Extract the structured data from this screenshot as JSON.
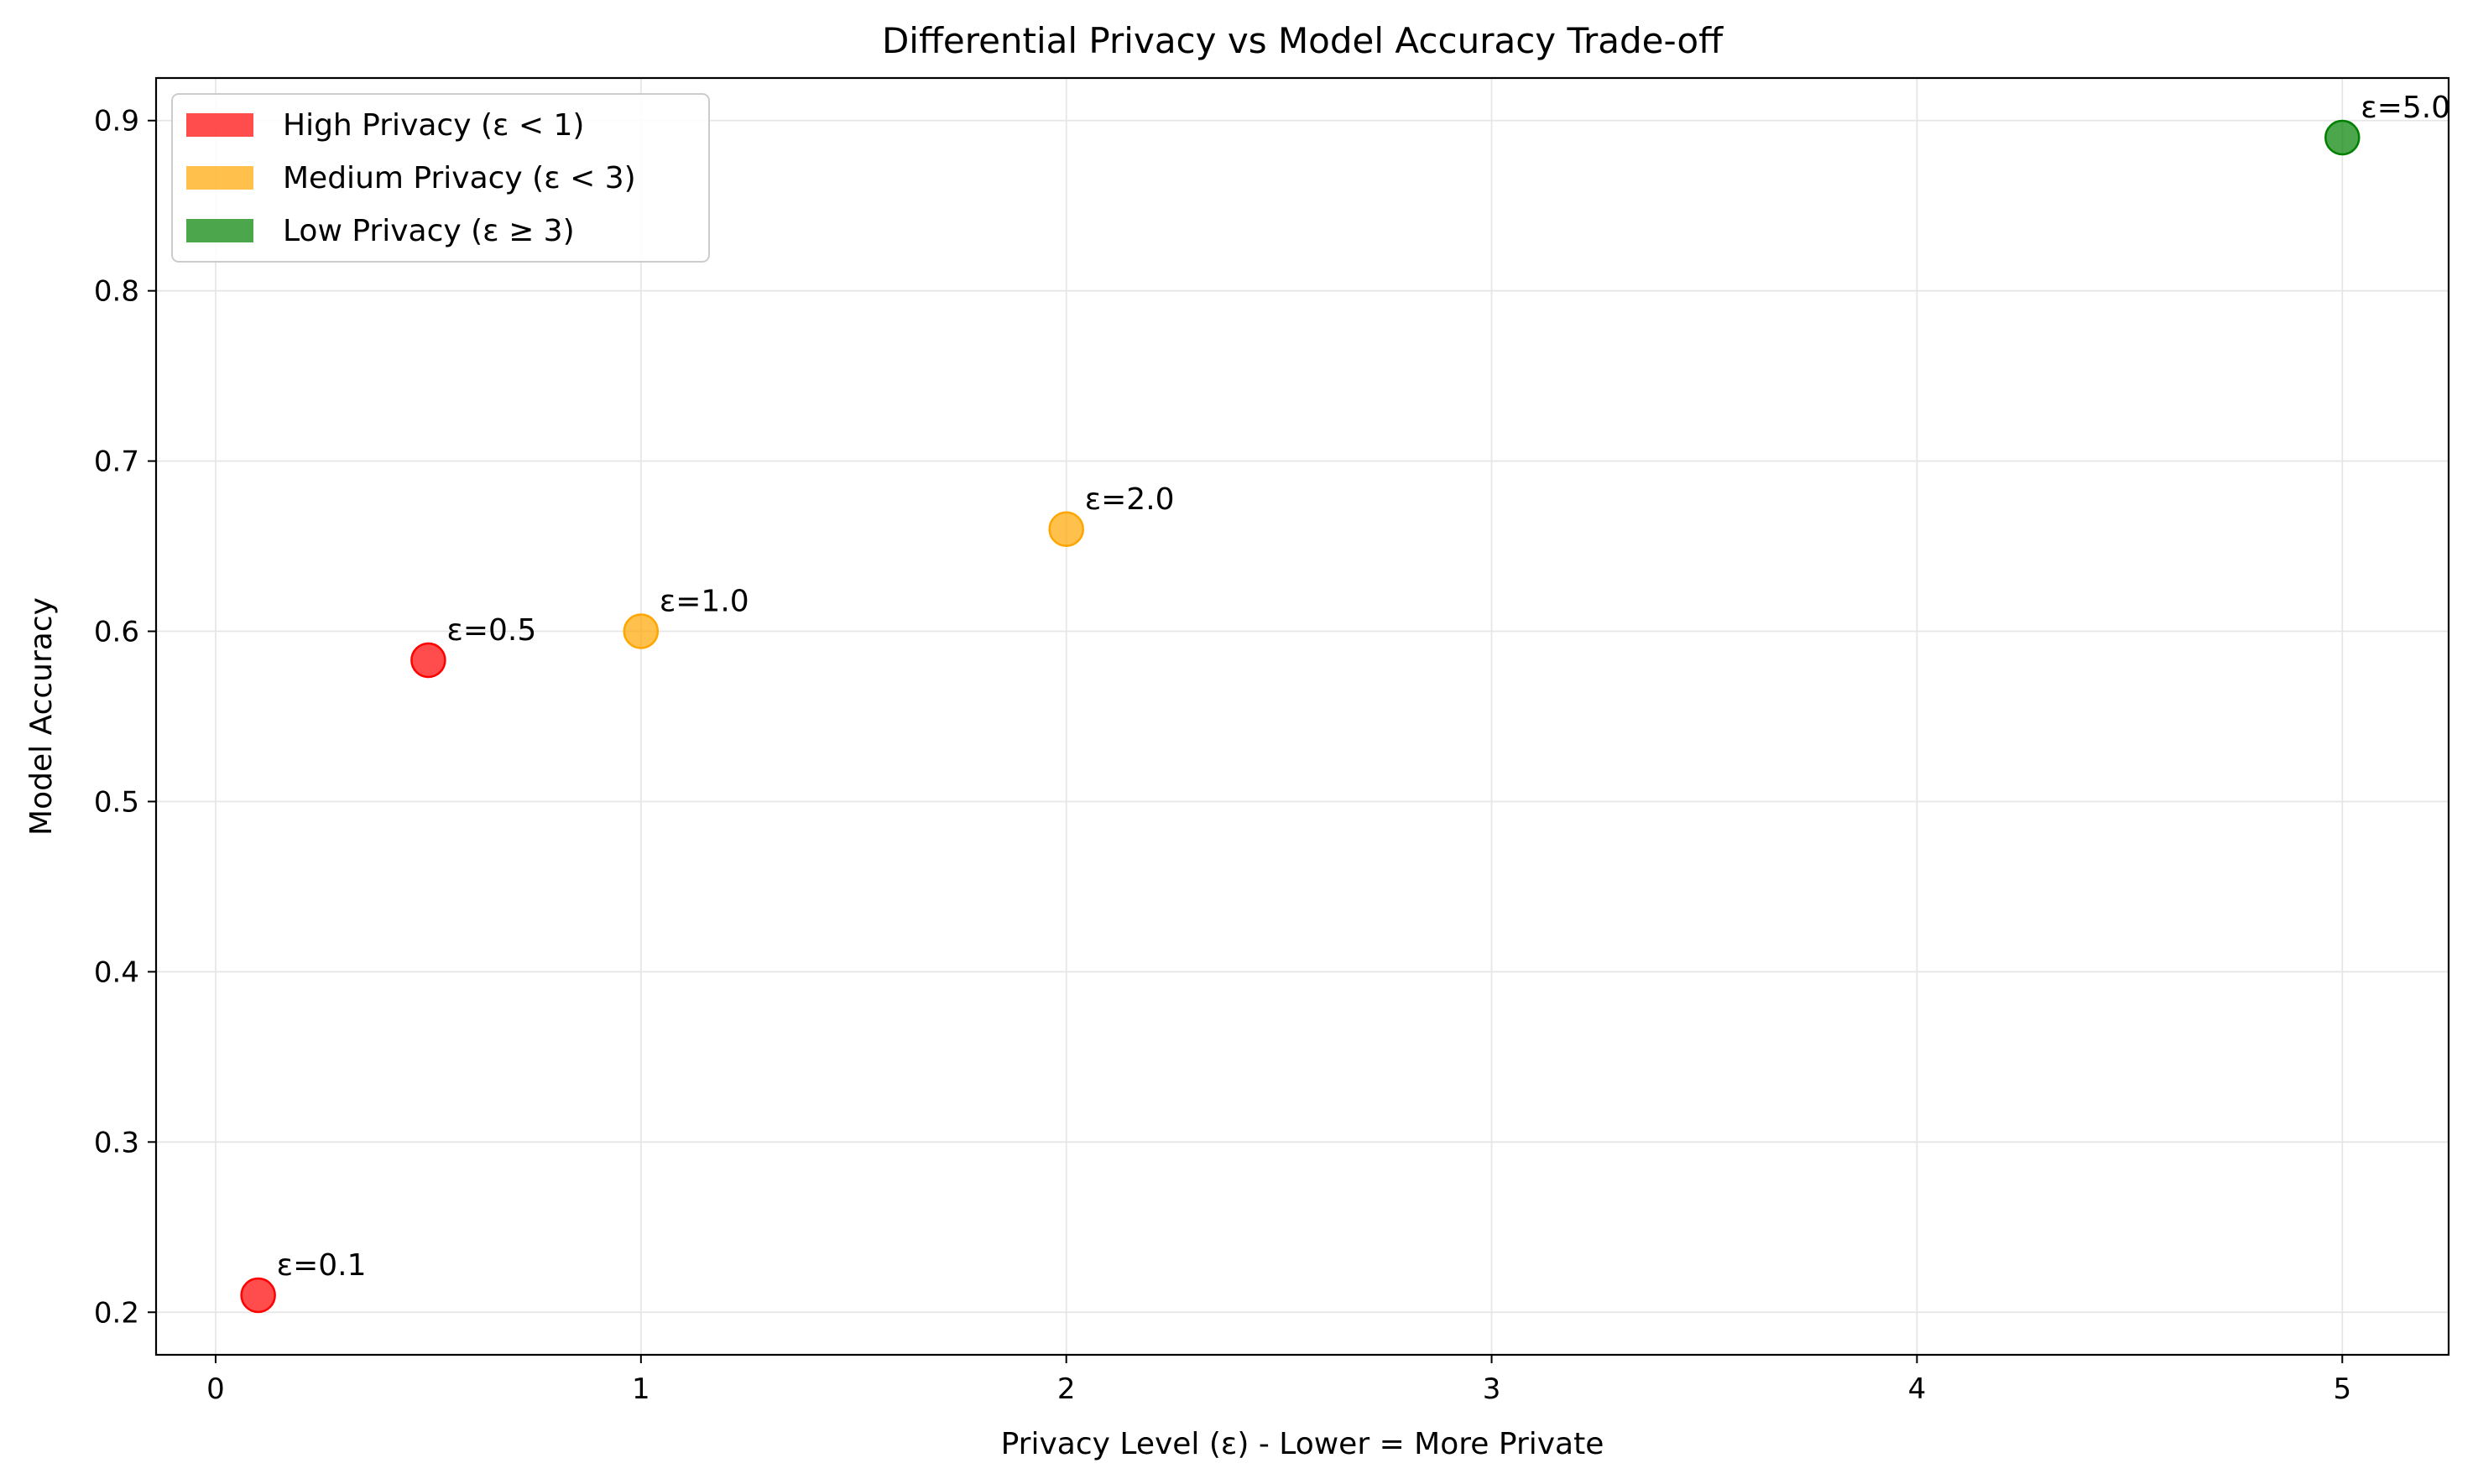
{
  "chart_data": {
    "type": "scatter",
    "title": "Differential Privacy vs Model Accuracy Trade-off",
    "xlabel": "Privacy Level (ε) - Lower = More Private",
    "ylabel": "Model Accuracy",
    "xlim": [
      -0.14,
      5.25
    ],
    "ylim": [
      0.175,
      0.925
    ],
    "x_ticks": [
      0,
      1,
      2,
      3,
      4,
      5
    ],
    "x_tick_labels": [
      "0",
      "1",
      "2",
      "3",
      "4",
      "5"
    ],
    "y_ticks": [
      0.2,
      0.3,
      0.4,
      0.5,
      0.6,
      0.7,
      0.8,
      0.9
    ],
    "y_tick_labels": [
      "0.2",
      "0.3",
      "0.4",
      "0.5",
      "0.6",
      "0.7",
      "0.8",
      "0.9"
    ],
    "grid": true,
    "legend_position": "top-left",
    "legend": [
      {
        "label": "High Privacy (ε < 1)",
        "color": "#ff0000"
      },
      {
        "label": "Medium Privacy (ε < 3)",
        "color": "#ffa500"
      },
      {
        "label": "Low Privacy (ε ≥ 3)",
        "color": "#008000"
      }
    ],
    "points": [
      {
        "x": 0.1,
        "y": 0.21,
        "label": "ε=0.1",
        "color": "#ff0000"
      },
      {
        "x": 0.5,
        "y": 0.583,
        "label": "ε=0.5",
        "color": "#ff0000"
      },
      {
        "x": 1.0,
        "y": 0.6,
        "label": "ε=1.0",
        "color": "#ffa500"
      },
      {
        "x": 2.0,
        "y": 0.66,
        "label": "ε=2.0",
        "color": "#ffa500"
      },
      {
        "x": 5.0,
        "y": 0.89,
        "label": "ε=5.0",
        "color": "#008000"
      }
    ]
  }
}
